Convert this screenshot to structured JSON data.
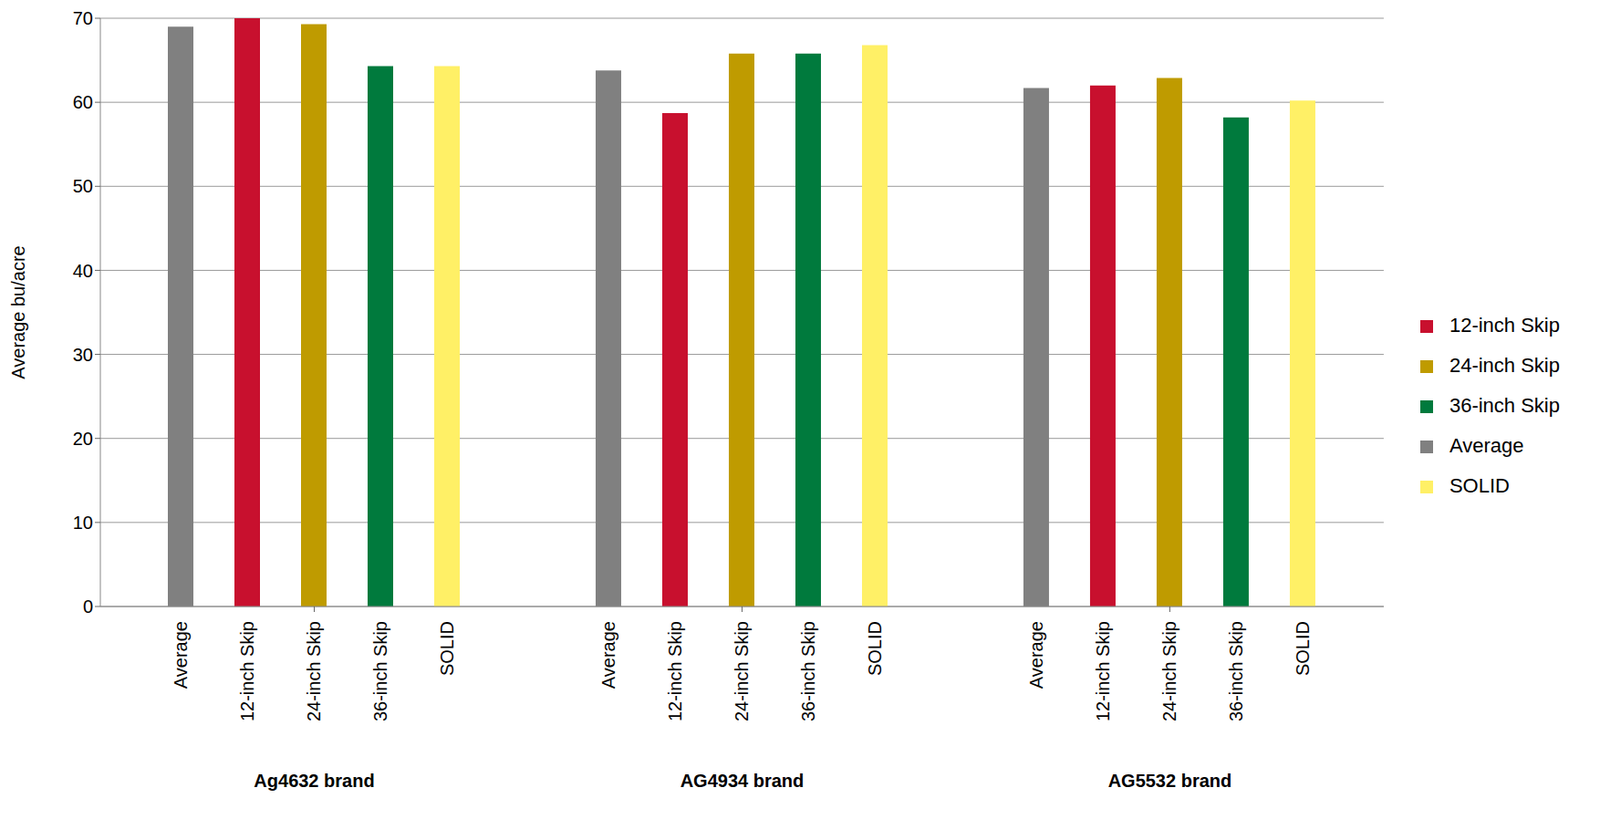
{
  "chart_data": {
    "type": "bar",
    "categories": [
      "Ag4632 brand",
      "AG4934 brand",
      "AG5532 brand"
    ],
    "series": [
      {
        "name": "Average",
        "color": "#808080",
        "values": [
          69.0,
          63.8,
          61.7
        ]
      },
      {
        "name": "12-inch Skip",
        "color": "#C8102E",
        "values": [
          70.0,
          58.7,
          62.0
        ]
      },
      {
        "name": "24-inch Skip",
        "color": "#BF9B00",
        "values": [
          69.3,
          65.8,
          62.9
        ]
      },
      {
        "name": "36-inch Skip",
        "color": "#007A3D",
        "values": [
          64.3,
          65.8,
          58.2
        ]
      },
      {
        "name": "SOLID",
        "color": "#FFF066",
        "values": [
          64.3,
          66.8,
          60.2
        ]
      }
    ],
    "y_label": "Average bu/acre",
    "ylim": [
      0,
      70
    ],
    "yticks": [
      0,
      10,
      20,
      30,
      40,
      50,
      60,
      70
    ],
    "grid": true,
    "legend": "right"
  }
}
